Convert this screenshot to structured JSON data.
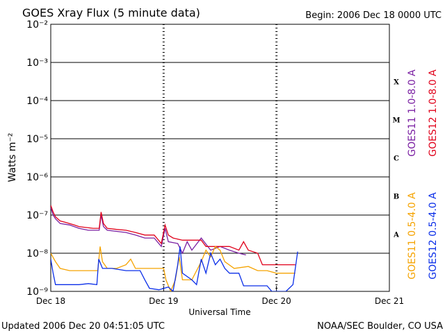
{
  "chart_data": {
    "type": "line",
    "title": "GOES Xray Flux (5 minute data)",
    "subtitle": "Begin:  2006 Dec 18 0000 UTC",
    "x_label": "Universal Time",
    "y_label": "Watts m⁻²",
    "footer_left": "Updated 2006 Dec 20 04:51:05 UTC",
    "footer_right": "NOAA/SEC Boulder, CO USA",
    "log_scale": true,
    "grid": true,
    "xlim": [
      0,
      72
    ],
    "xticks": [
      {
        "value": 0,
        "label": "Dec 18"
      },
      {
        "value": 24,
        "label": "Dec 19"
      },
      {
        "value": 48,
        "label": "Dec 20"
      },
      {
        "value": 72,
        "label": "Dec 21"
      }
    ],
    "ylim": [
      1e-09,
      0.01
    ],
    "yticks": [
      {
        "value": 1e-09,
        "label": "10⁻⁹"
      },
      {
        "value": 1e-08,
        "label": "10⁻⁸"
      },
      {
        "value": 1e-07,
        "label": "10⁻⁷"
      },
      {
        "value": 1e-06,
        "label": "10⁻⁶"
      },
      {
        "value": 1e-05,
        "label": "10⁻⁵"
      },
      {
        "value": 0.0001,
        "label": "10⁻⁴"
      },
      {
        "value": 0.001,
        "label": "10⁻³"
      },
      {
        "value": 0.01,
        "label": "10⁻²"
      }
    ],
    "flare_classes": [
      {
        "label": "A",
        "value": 1e-08
      },
      {
        "label": "B",
        "value": 1e-07
      },
      {
        "label": "C",
        "value": 1e-06
      },
      {
        "label": "M",
        "value": 1e-05
      },
      {
        "label": "X",
        "value": 0.0001
      }
    ],
    "series": [
      {
        "name": "GOES11 1.0-8.0 A",
        "color": "#7a1fa2",
        "x": [
          0,
          0.5,
          1,
          2,
          4,
          6,
          8,
          10.3,
          10.7,
          11.2,
          12,
          16,
          18,
          20,
          22,
          23.5,
          24.3,
          25,
          27,
          28,
          29,
          30,
          32,
          34,
          36,
          38,
          40,
          41.5
        ],
        "values": [
          1.6e-07,
          1e-07,
          8e-08,
          6e-08,
          5.5e-08,
          4.5e-08,
          4e-08,
          4e-08,
          1e-07,
          5e-08,
          4e-08,
          3.5e-08,
          3e-08,
          2.5e-08,
          2.5e-08,
          1.5e-08,
          4.5e-08,
          2e-08,
          1.8e-08,
          1e-08,
          2e-08,
          1.2e-08,
          2.5e-08,
          1.2e-08,
          1.5e-08,
          1.2e-08,
          1e-08,
          9e-09
        ]
      },
      {
        "name": "GOES12 1.0-8.0 A",
        "color": "#e0001a",
        "x": [
          0,
          0.5,
          1,
          2,
          3,
          4,
          5,
          6,
          7,
          9,
          10.3,
          10.7,
          11.2,
          12,
          14,
          16,
          18,
          20,
          22,
          23.5,
          24.3,
          25,
          26,
          28,
          30,
          32,
          33,
          35,
          38,
          40,
          41,
          42,
          44,
          45,
          48,
          50,
          52
        ],
        "values": [
          1.8e-07,
          1.2e-07,
          9e-08,
          7e-08,
          6.5e-08,
          6e-08,
          5.5e-08,
          5e-08,
          4.8e-08,
          4.5e-08,
          4.5e-08,
          1.2e-07,
          6e-08,
          4.5e-08,
          4.2e-08,
          4e-08,
          3.5e-08,
          3e-08,
          3e-08,
          1.8e-08,
          5.5e-08,
          3e-08,
          2.5e-08,
          2.2e-08,
          2.2e-08,
          2.2e-08,
          1.5e-08,
          1.5e-08,
          1.5e-08,
          1.2e-08,
          2e-08,
          1.2e-08,
          1e-08,
          5e-09,
          5e-09,
          5e-09,
          5e-09
        ]
      },
      {
        "name": "GOES11 0.5-4.0 A",
        "color": "#f5a300",
        "x": [
          0,
          1,
          2,
          4,
          8,
          10,
          10.5,
          11,
          12,
          14,
          16,
          17,
          18,
          22,
          24,
          24.5,
          25.5,
          26.5,
          27.3,
          28,
          30,
          32,
          33,
          34,
          35,
          36,
          37,
          39,
          42,
          44,
          46,
          48,
          50,
          52
        ],
        "values": [
          1e-08,
          6e-09,
          4e-09,
          3.5e-09,
          3.5e-09,
          3.5e-09,
          1.5e-08,
          6e-09,
          4e-09,
          4e-09,
          5e-09,
          7e-09,
          4e-09,
          4e-09,
          4e-09,
          2e-09,
          1e-09,
          2e-09,
          8e-09,
          2e-09,
          2e-09,
          6e-09,
          1.2e-08,
          8e-09,
          1.5e-08,
          1.2e-08,
          6e-09,
          4e-09,
          4.5e-09,
          3.5e-09,
          3.5e-09,
          3e-09,
          3e-09,
          3e-09
        ]
      },
      {
        "name": "GOES12 0.5-4.0 A",
        "color": "#0a2ee8",
        "x": [
          0,
          0.5,
          1,
          4,
          6,
          8,
          9.8,
          10.2,
          11,
          13,
          16,
          19,
          20,
          21,
          23,
          25,
          26,
          27,
          27.5,
          28,
          30,
          31,
          32,
          33,
          34,
          35,
          36,
          37,
          38,
          40,
          41,
          44,
          46,
          47,
          50,
          51.5,
          52,
          52.5
        ],
        "values": [
          7e-09,
          3e-09,
          1.5e-09,
          1.5e-09,
          1.5e-09,
          1.6e-09,
          1.5e-09,
          7e-09,
          4e-09,
          4e-09,
          3.5e-09,
          3.5e-09,
          2e-09,
          1.2e-09,
          1.1e-09,
          1.3e-09,
          1e-09,
          5e-09,
          1.5e-08,
          3e-09,
          2e-09,
          1.5e-09,
          7e-09,
          3e-09,
          1e-08,
          5e-09,
          7e-09,
          4e-09,
          3e-09,
          3e-09,
          1.4e-09,
          1.4e-09,
          1.4e-09,
          1e-09,
          1e-09,
          1.5e-09,
          4e-09,
          1.1e-08
        ]
      }
    ]
  }
}
